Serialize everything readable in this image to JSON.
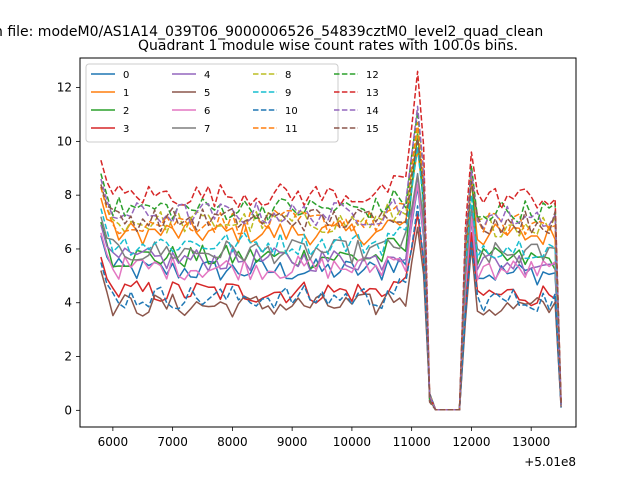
{
  "figure": {
    "suptitle": "n file: modeM0/AS1A14_039T06_9000006526_54839cztM0_level2_quad_clean",
    "title": "Quadrant 1 module wise count rates with 100.0s bins.",
    "x_offset_label": "+5.01e8"
  },
  "chart_data": {
    "type": "line",
    "title": "Quadrant 1 module wise count rates with 100.0s bins.",
    "xlabel": "",
    "ylabel": "",
    "x_offset": 501000000,
    "xlim": [
      5450,
      13750
    ],
    "ylim": [
      -0.62,
      13.1
    ],
    "xticks": [
      6000,
      7000,
      8000,
      9000,
      10000,
      11000,
      12000,
      13000
    ],
    "yticks": [
      0,
      2,
      4,
      6,
      8,
      10,
      12
    ],
    "grid": false,
    "legend": {
      "location": "upper-left",
      "columns": 4
    },
    "colors": [
      "#1f77b4",
      "#ff7f0e",
      "#2ca02c",
      "#d62728",
      "#9467bd",
      "#8c564b",
      "#e377c2",
      "#7f7f7f",
      "#bcbd22",
      "#17becf",
      "#1f77b4",
      "#ff7f0e",
      "#2ca02c",
      "#d62728",
      "#9467bd",
      "#8c564b"
    ],
    "x": [
      5800,
      5900,
      6000,
      6100,
      6200,
      6300,
      6400,
      6500,
      6600,
      6700,
      6800,
      6900,
      7000,
      7100,
      7200,
      7300,
      7400,
      7500,
      7600,
      7700,
      7800,
      7900,
      8000,
      8100,
      8200,
      8300,
      8400,
      8500,
      8600,
      8700,
      8800,
      8900,
      9000,
      9100,
      9200,
      9300,
      9400,
      9500,
      9600,
      9700,
      9800,
      9900,
      10000,
      10100,
      10200,
      10300,
      10400,
      10500,
      10600,
      10700,
      10800,
      10900,
      11000,
      11100,
      11200,
      11300,
      11400,
      11500,
      11600,
      11700,
      11800,
      11900,
      12000,
      12100,
      12200,
      12300,
      12400,
      12500,
      12600,
      12700,
      12800,
      12900,
      13000,
      13100,
      13200,
      13300,
      13400,
      13500
    ],
    "series": [
      {
        "name": "0",
        "style": "solid",
        "base": 5.2,
        "peak": 8.3,
        "p2": 7.1,
        "last": 0.2
      },
      {
        "name": "1",
        "style": "solid",
        "base": 6.6,
        "peak": 9.7,
        "p2": 8.6,
        "last": 0.2
      },
      {
        "name": "2",
        "style": "solid",
        "base": 5.7,
        "peak": 10.3,
        "p2": 8.9,
        "last": 0.2
      },
      {
        "name": "3",
        "style": "solid",
        "base": 4.4,
        "peak": 7.3,
        "p2": 6.6,
        "last": 0.2
      },
      {
        "name": "4",
        "style": "solid",
        "base": 5.6,
        "peak": 8.7,
        "p2": 7.3,
        "last": 0.2
      },
      {
        "name": "5",
        "style": "solid",
        "base": 3.9,
        "peak": 6.8,
        "p2": 6.1,
        "last": 0.1
      },
      {
        "name": "6",
        "style": "solid",
        "base": 5.3,
        "peak": 8.4,
        "p2": 7.2,
        "last": 0.2
      },
      {
        "name": "7",
        "style": "solid",
        "base": 5.9,
        "peak": 8.8,
        "p2": 7.6,
        "last": 0.2
      },
      {
        "name": "8",
        "style": "dashed",
        "base": 7.0,
        "peak": 10.4,
        "p2": 8.7,
        "last": 0.2
      },
      {
        "name": "9",
        "style": "dashed",
        "base": 6.2,
        "peak": 9.8,
        "p2": 8.0,
        "last": 0.2
      },
      {
        "name": "10",
        "style": "dashed",
        "base": 4.2,
        "peak": 7.6,
        "p2": 6.3,
        "last": 0.1
      },
      {
        "name": "11",
        "style": "dashed",
        "base": 7.0,
        "peak": 10.7,
        "p2": 8.6,
        "last": 0.2
      },
      {
        "name": "12",
        "style": "dashed",
        "base": 7.5,
        "peak": 11.1,
        "p2": 9.1,
        "last": 0.2
      },
      {
        "name": "13",
        "style": "dashed",
        "base": 8.0,
        "peak": 12.6,
        "p2": 9.6,
        "last": 0.3
      },
      {
        "name": "14",
        "style": "dashed",
        "base": 7.3,
        "peak": 11.3,
        "p2": 8.9,
        "last": 0.2
      },
      {
        "name": "15",
        "style": "dashed",
        "base": 7.1,
        "peak": 10.1,
        "p2": 8.5,
        "last": 0.2
      }
    ]
  }
}
